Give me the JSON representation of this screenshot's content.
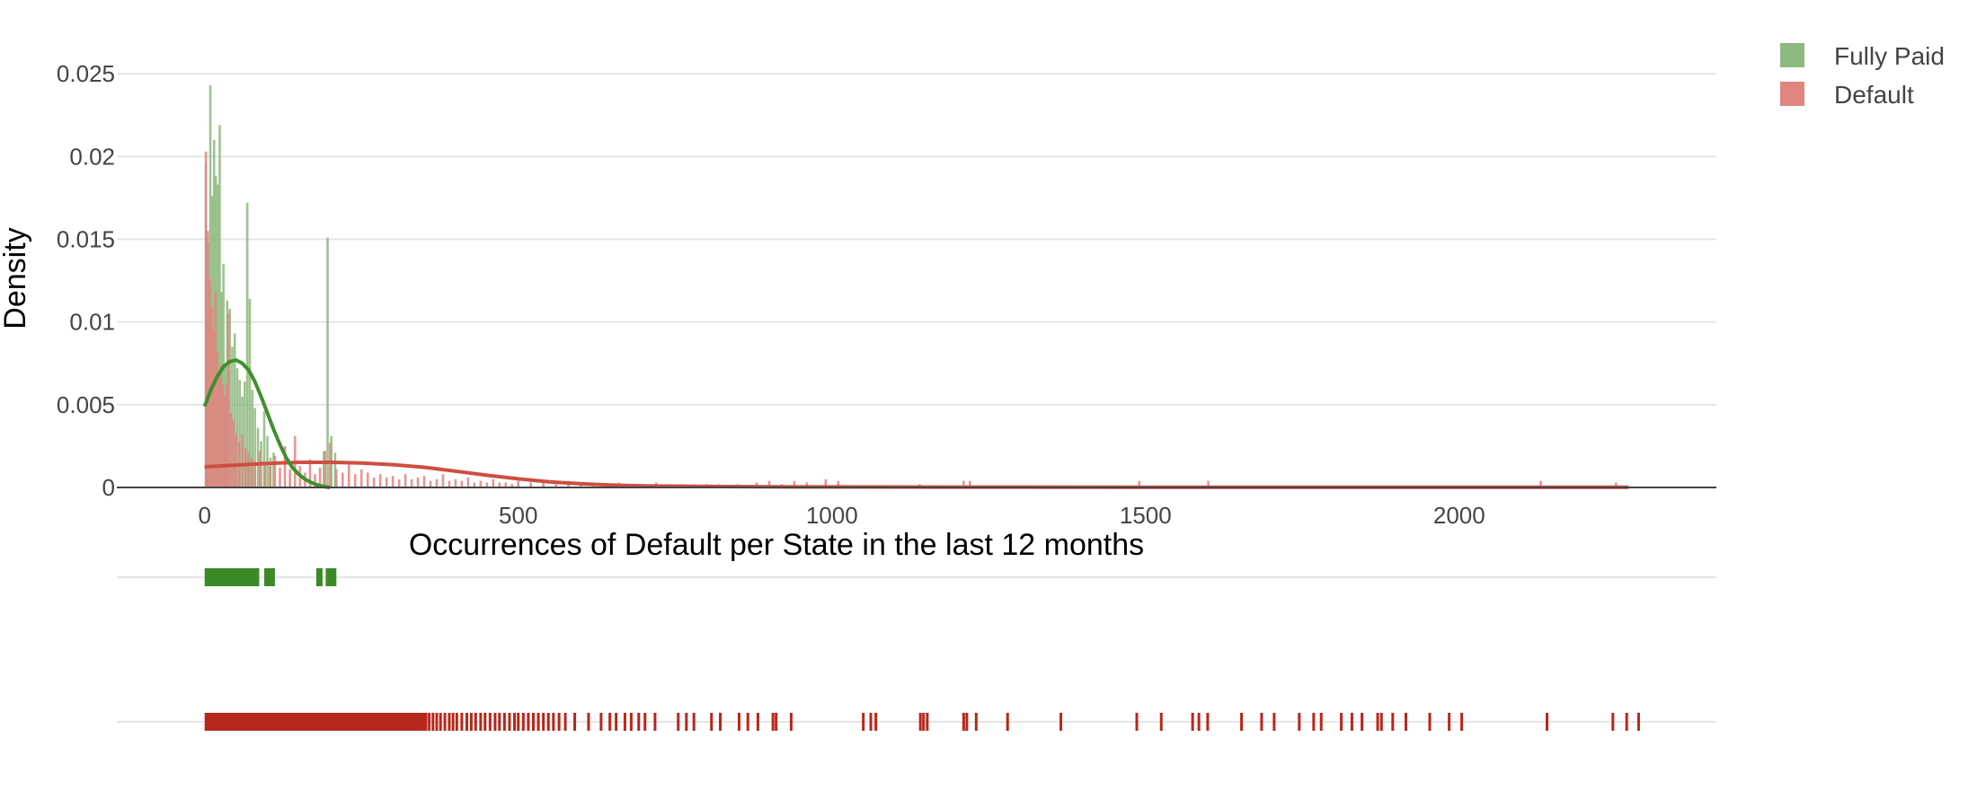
{
  "chart_data": {
    "type": "histogram",
    "title": "",
    "xlabel": "Occurrences of Default per State in the last 12 months",
    "ylabel": "Density",
    "xlim": [
      -140,
      2410
    ],
    "ylim": [
      0,
      0.0262
    ],
    "x_ticks": [
      {
        "value": 0,
        "label": "0"
      },
      {
        "value": 500,
        "label": "500"
      },
      {
        "value": 1000,
        "label": "1000"
      },
      {
        "value": 1500,
        "label": "1500"
      },
      {
        "value": 2000,
        "label": "2000"
      }
    ],
    "y_ticks": [
      {
        "value": 0,
        "label": "0"
      },
      {
        "value": 0.005,
        "label": "0.005"
      },
      {
        "value": 0.01,
        "label": "0.01"
      },
      {
        "value": 0.015,
        "label": "0.015"
      },
      {
        "value": 0.02,
        "label": "0.02"
      },
      {
        "value": 0.025,
        "label": "0.025"
      }
    ],
    "grid": true,
    "legend_position": "top-right",
    "colors": {
      "fully_paid_bar": "#8db87e",
      "fully_paid_line": "#3f8f2e",
      "fully_paid_rug": "#3b8a26",
      "default_bar": "#df8580",
      "default_line": "#cd4e42",
      "default_rug": "#b8271c",
      "grid": "#e5e5e5",
      "axis": "#444444"
    },
    "series": [
      {
        "name": "Fully Paid",
        "histogram": [
          {
            "x": 2,
            "y": 0.0195
          },
          {
            "x": 4,
            "y": 0.0103
          },
          {
            "x": 6,
            "y": 0.0148
          },
          {
            "x": 9,
            "y": 0.0243
          },
          {
            "x": 12,
            "y": 0.0176
          },
          {
            "x": 15,
            "y": 0.021
          },
          {
            "x": 18,
            "y": 0.0188
          },
          {
            "x": 21,
            "y": 0.0183
          },
          {
            "x": 24,
            "y": 0.0219
          },
          {
            "x": 27,
            "y": 0.0118
          },
          {
            "x": 30,
            "y": 0.0135
          },
          {
            "x": 33,
            "y": 0.0075
          },
          {
            "x": 36,
            "y": 0.0113
          },
          {
            "x": 40,
            "y": 0.0108
          },
          {
            "x": 44,
            "y": 0.0085
          },
          {
            "x": 48,
            "y": 0.0093
          },
          {
            "x": 52,
            "y": 0.0072
          },
          {
            "x": 56,
            "y": 0.0065
          },
          {
            "x": 60,
            "y": 0.0055
          },
          {
            "x": 64,
            "y": 0.0064
          },
          {
            "x": 68,
            "y": 0.0172
          },
          {
            "x": 72,
            "y": 0.0114
          },
          {
            "x": 76,
            "y": 0.0059
          },
          {
            "x": 80,
            "y": 0.0048
          },
          {
            "x": 85,
            "y": 0.0036
          },
          {
            "x": 90,
            "y": 0.0028
          },
          {
            "x": 95,
            "y": 0.0046
          },
          {
            "x": 100,
            "y": 0.0031
          },
          {
            "x": 105,
            "y": 0.0018
          },
          {
            "x": 110,
            "y": 0.0021
          },
          {
            "x": 190,
            "y": 0.0022
          },
          {
            "x": 196,
            "y": 0.0151
          },
          {
            "x": 202,
            "y": 0.0031
          },
          {
            "x": 208,
            "y": 0.0021
          }
        ],
        "kde": [
          {
            "x": 0,
            "y": 0.0049
          },
          {
            "x": 10,
            "y": 0.0059
          },
          {
            "x": 20,
            "y": 0.0067
          },
          {
            "x": 30,
            "y": 0.0073
          },
          {
            "x": 40,
            "y": 0.0076
          },
          {
            "x": 50,
            "y": 0.0077
          },
          {
            "x": 60,
            "y": 0.0075
          },
          {
            "x": 70,
            "y": 0.0071
          },
          {
            "x": 80,
            "y": 0.0064
          },
          {
            "x": 90,
            "y": 0.0055
          },
          {
            "x": 100,
            "y": 0.0045
          },
          {
            "x": 110,
            "y": 0.0035
          },
          {
            "x": 120,
            "y": 0.0026
          },
          {
            "x": 130,
            "y": 0.0018
          },
          {
            "x": 140,
            "y": 0.0012
          },
          {
            "x": 150,
            "y": 0.0008
          },
          {
            "x": 160,
            "y": 0.0005
          },
          {
            "x": 170,
            "y": 0.0003
          },
          {
            "x": 180,
            "y": 0.00015
          },
          {
            "x": 190,
            "y": 5e-05
          },
          {
            "x": 200,
            "y": 0.0
          }
        ],
        "rug_ranges": [
          [
            0,
            87
          ],
          [
            95,
            112
          ],
          [
            178,
            188
          ],
          [
            193,
            210
          ]
        ],
        "rug_points": []
      },
      {
        "name": "Default",
        "histogram": [
          {
            "x": 2,
            "y": 0.0203
          },
          {
            "x": 5,
            "y": 0.0155
          },
          {
            "x": 8,
            "y": 0.0126
          },
          {
            "x": 11,
            "y": 0.0109
          },
          {
            "x": 14,
            "y": 0.0095
          },
          {
            "x": 17,
            "y": 0.0118
          },
          {
            "x": 20,
            "y": 0.0082
          },
          {
            "x": 23,
            "y": 0.0068
          },
          {
            "x": 26,
            "y": 0.0074
          },
          {
            "x": 29,
            "y": 0.0062
          },
          {
            "x": 32,
            "y": 0.0055
          },
          {
            "x": 35,
            "y": 0.0062
          },
          {
            "x": 38,
            "y": 0.0105
          },
          {
            "x": 42,
            "y": 0.0045
          },
          {
            "x": 46,
            "y": 0.0041
          },
          {
            "x": 50,
            "y": 0.0033
          },
          {
            "x": 55,
            "y": 0.0028
          },
          {
            "x": 60,
            "y": 0.0032
          },
          {
            "x": 65,
            "y": 0.0024
          },
          {
            "x": 70,
            "y": 0.0021
          },
          {
            "x": 75,
            "y": 0.0018
          },
          {
            "x": 80,
            "y": 0.0016
          },
          {
            "x": 88,
            "y": 0.0022
          },
          {
            "x": 96,
            "y": 0.0014
          },
          {
            "x": 104,
            "y": 0.0013
          },
          {
            "x": 112,
            "y": 0.0019
          },
          {
            "x": 120,
            "y": 0.0012
          },
          {
            "x": 128,
            "y": 0.0025
          },
          {
            "x": 136,
            "y": 0.0011
          },
          {
            "x": 144,
            "y": 0.0031
          },
          {
            "x": 152,
            "y": 0.0013
          },
          {
            "x": 160,
            "y": 0.0009
          },
          {
            "x": 168,
            "y": 0.0017
          },
          {
            "x": 176,
            "y": 0.0008
          },
          {
            "x": 184,
            "y": 0.0012
          },
          {
            "x": 192,
            "y": 0.0022
          },
          {
            "x": 200,
            "y": 0.0027
          },
          {
            "x": 210,
            "y": 0.0011
          },
          {
            "x": 220,
            "y": 0.0009
          },
          {
            "x": 230,
            "y": 0.0014
          },
          {
            "x": 240,
            "y": 0.0008
          },
          {
            "x": 250,
            "y": 0.0011
          },
          {
            "x": 260,
            "y": 0.0009
          },
          {
            "x": 270,
            "y": 0.0006
          },
          {
            "x": 280,
            "y": 0.0008
          },
          {
            "x": 290,
            "y": 0.0006
          },
          {
            "x": 300,
            "y": 0.0007
          },
          {
            "x": 310,
            "y": 0.0005
          },
          {
            "x": 320,
            "y": 0.0008
          },
          {
            "x": 330,
            "y": 0.0005
          },
          {
            "x": 340,
            "y": 0.0006
          },
          {
            "x": 350,
            "y": 0.0007
          },
          {
            "x": 360,
            "y": 0.0004
          },
          {
            "x": 370,
            "y": 0.0005
          },
          {
            "x": 380,
            "y": 0.0008
          },
          {
            "x": 390,
            "y": 0.0004
          },
          {
            "x": 400,
            "y": 0.0005
          },
          {
            "x": 410,
            "y": 0.0004
          },
          {
            "x": 420,
            "y": 0.0006
          },
          {
            "x": 430,
            "y": 0.0003
          },
          {
            "x": 440,
            "y": 0.0004
          },
          {
            "x": 450,
            "y": 0.0003
          },
          {
            "x": 460,
            "y": 0.0005
          },
          {
            "x": 470,
            "y": 0.0003
          },
          {
            "x": 480,
            "y": 0.0003
          },
          {
            "x": 490,
            "y": 0.0002
          },
          {
            "x": 500,
            "y": 0.0004
          },
          {
            "x": 520,
            "y": 0.0003
          },
          {
            "x": 540,
            "y": 0.0003
          },
          {
            "x": 560,
            "y": 0.0002
          },
          {
            "x": 580,
            "y": 0.0004
          },
          {
            "x": 600,
            "y": 0.0002
          },
          {
            "x": 620,
            "y": 0.0003
          },
          {
            "x": 640,
            "y": 0.0002
          },
          {
            "x": 660,
            "y": 0.0003
          },
          {
            "x": 680,
            "y": 0.0002
          },
          {
            "x": 700,
            "y": 0.0002
          },
          {
            "x": 720,
            "y": 0.0003
          },
          {
            "x": 740,
            "y": 0.0002
          },
          {
            "x": 760,
            "y": 0.0002
          },
          {
            "x": 780,
            "y": 0.0002
          },
          {
            "x": 800,
            "y": 0.0002
          },
          {
            "x": 820,
            "y": 0.0002
          },
          {
            "x": 850,
            "y": 0.0002
          },
          {
            "x": 880,
            "y": 0.0003
          },
          {
            "x": 900,
            "y": 0.0004
          },
          {
            "x": 920,
            "y": 0.0002
          },
          {
            "x": 940,
            "y": 0.0004
          },
          {
            "x": 960,
            "y": 0.0003
          },
          {
            "x": 990,
            "y": 0.0005
          },
          {
            "x": 1010,
            "y": 0.0004
          },
          {
            "x": 1140,
            "y": 0.0002
          },
          {
            "x": 1210,
            "y": 0.0004
          },
          {
            "x": 1220,
            "y": 0.0004
          },
          {
            "x": 1490,
            "y": 0.0004
          },
          {
            "x": 1600,
            "y": 0.0004
          },
          {
            "x": 2130,
            "y": 0.0004
          },
          {
            "x": 2250,
            "y": 0.0003
          }
        ],
        "kde": [
          {
            "x": 0,
            "y": 0.00125
          },
          {
            "x": 50,
            "y": 0.00135
          },
          {
            "x": 100,
            "y": 0.00145
          },
          {
            "x": 150,
            "y": 0.00152
          },
          {
            "x": 200,
            "y": 0.00152
          },
          {
            "x": 250,
            "y": 0.00148
          },
          {
            "x": 300,
            "y": 0.00138
          },
          {
            "x": 350,
            "y": 0.00122
          },
          {
            "x": 400,
            "y": 0.00098
          },
          {
            "x": 450,
            "y": 0.00074
          },
          {
            "x": 500,
            "y": 0.00052
          },
          {
            "x": 550,
            "y": 0.00034
          },
          {
            "x": 600,
            "y": 0.00022
          },
          {
            "x": 650,
            "y": 0.00014
          },
          {
            "x": 700,
            "y": 0.0001
          },
          {
            "x": 800,
            "y": 6e-05
          },
          {
            "x": 900,
            "y": 4e-05
          },
          {
            "x": 1000,
            "y": 3e-05
          },
          {
            "x": 1200,
            "y": 2e-05
          },
          {
            "x": 1500,
            "y": 1e-05
          },
          {
            "x": 1800,
            "y": 1e-05
          },
          {
            "x": 2100,
            "y": 1e-05
          },
          {
            "x": 2270,
            "y": 1e-05
          }
        ],
        "rug_ranges": [
          [
            0,
            355
          ]
        ],
        "rug_points": [
          358,
          364,
          370,
          376,
          383,
          390,
          396,
          402,
          410,
          418,
          425,
          432,
          440,
          447,
          455,
          463,
          470,
          478,
          486,
          494,
          500,
          508,
          516,
          524,
          532,
          540,
          548,
          556,
          565,
          575,
          590,
          612,
          632,
          646,
          656,
          670,
          680,
          692,
          702,
          718,
          755,
          768,
          780,
          808,
          822,
          852,
          866,
          882,
          906,
          911,
          935,
          1050,
          1062,
          1070,
          1141,
          1146,
          1152,
          1210,
          1215,
          1230,
          1280,
          1365,
          1486,
          1525,
          1575,
          1585,
          1599,
          1653,
          1685,
          1705,
          1745,
          1768,
          1780,
          1812,
          1829,
          1845,
          1870,
          1876,
          1894,
          1915,
          1953,
          1984,
          2004,
          2140,
          2245,
          2267,
          2286
        ]
      }
    ]
  }
}
